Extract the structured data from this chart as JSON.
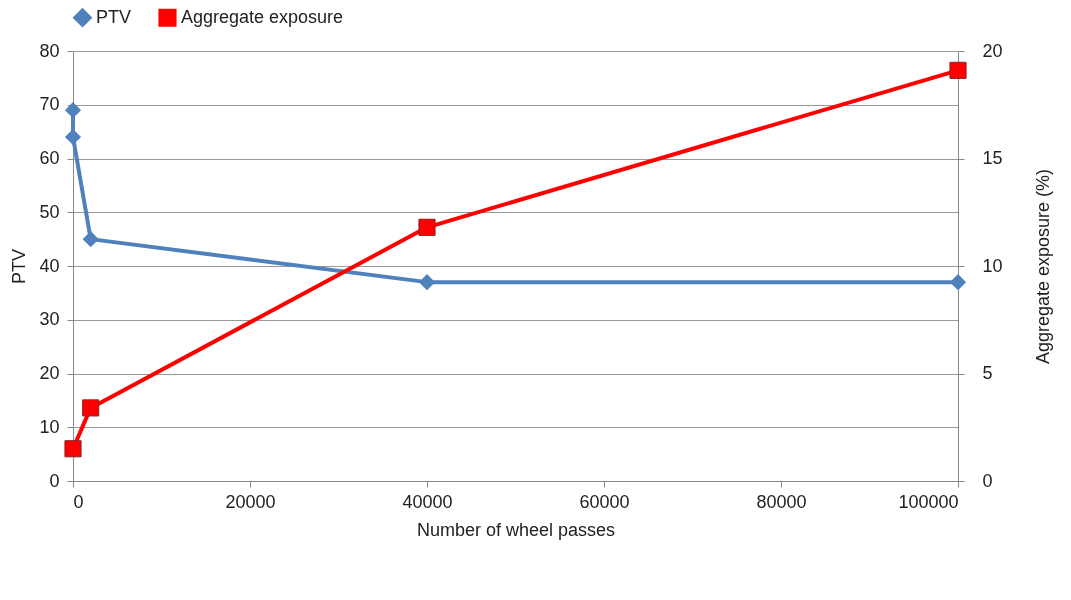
{
  "chart_data": {
    "type": "line",
    "xlabel": "Number of wheel passes",
    "ylabel": "PTV",
    "y2label": "Aggregate exposure (%)",
    "series": [
      {
        "name": "PTV",
        "color": "#4f81bd",
        "marker": "diamond",
        "x": [
          0,
          0,
          2000,
          40000,
          100000
        ],
        "values": [
          69,
          64,
          45,
          37,
          37
        ]
      },
      {
        "name": "Aggregate exposure",
        "color": "#ff0000",
        "marker": "square",
        "axis": "y2",
        "x": [
          0,
          2000,
          40000,
          100000
        ],
        "values": [
          1.5,
          3.4,
          11.8,
          19.1
        ]
      }
    ],
    "xlim": [
      0,
      100000
    ],
    "xticks": [
      0,
      20000,
      40000,
      60000,
      80000,
      100000
    ],
    "ylim": [
      0,
      80
    ],
    "yticks": [
      0,
      10,
      20,
      30,
      40,
      50,
      60,
      70,
      80
    ],
    "y2lim": [
      0,
      20
    ],
    "y2ticks": [
      0,
      5,
      10,
      15,
      20
    ],
    "grid": "y",
    "legend": "top"
  }
}
